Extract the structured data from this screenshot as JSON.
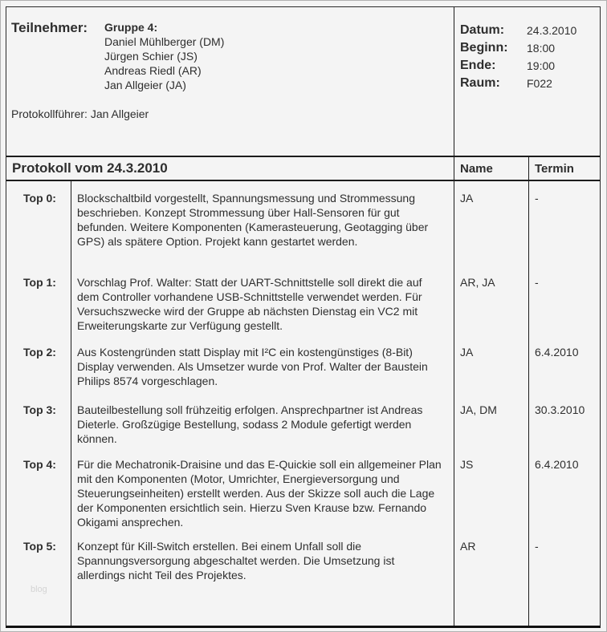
{
  "colors": {
    "background": "#f4f4f4",
    "border": "#1c1c1c",
    "text": "#2e2e2e",
    "watermark": "#d4d4d4"
  },
  "watermark": "blog",
  "header": {
    "participants_label": "Teilnehmer:",
    "group_label": "Gruppe 4:",
    "participants": [
      {
        "name": "Daniel Mühlberger (DM)"
      },
      {
        "name": "Jürgen Schier (JS)"
      },
      {
        "name": "Andreas Riedl (AR)"
      },
      {
        "name": "Jan Allgeier (JA)"
      }
    ],
    "secretary_line": "Protokollführer: Jan Allgeier",
    "meta": [
      {
        "label": "Datum:",
        "value": "24.3.2010"
      },
      {
        "label": "Beginn:",
        "value": "18:00"
      },
      {
        "label": "Ende:",
        "value": "19:00"
      },
      {
        "label": "Raum:",
        "value": "F022"
      }
    ]
  },
  "table": {
    "title": "Protokoll vom 24.3.2010",
    "name_header": "Name",
    "termin_header": "Termin",
    "rows": [
      {
        "top": "Top 0:",
        "text": "Blockschaltbild vorgestellt, Spannungsmessung und Strommessung beschrieben. Konzept Strommessung über Hall-Sensoren für gut befunden. Weitere Komponenten (Kamerasteuerung, Geotagging über GPS) als spätere Option. Projekt kann gestartet werden.",
        "name": "JA",
        "termin": "-"
      },
      {
        "top": "Top 1:",
        "text": "Vorschlag Prof. Walter: Statt der UART-Schnittstelle soll direkt die auf dem Controller vorhandene USB-Schnittstelle verwendet werden. Für Versuchszwecke wird der Gruppe ab nächsten Dienstag ein VC2 mit Erweiterungskarte zur Verfügung gestellt.",
        "name": "AR, JA",
        "termin": "-"
      },
      {
        "top": "Top 2:",
        "text": "Aus Kostengründen statt Display mit I²C ein kostengünstiges (8-Bit) Display verwenden. Als Umsetzer wurde von Prof. Walter der Baustein Philips 8574 vorgeschlagen.",
        "name": "JA",
        "termin": "6.4.2010"
      },
      {
        "top": "Top 3:",
        "text": "Bauteilbestellung soll frühzeitig erfolgen. Ansprechpartner ist Andreas Dieterle. Großzügige Bestellung, sodass 2 Module gefertigt werden können.",
        "name": "JA, DM",
        "termin": "30.3.2010"
      },
      {
        "top": "Top 4:",
        "text": "Für die Mechatronik-Draisine und das E-Quickie soll ein allgemeiner Plan mit den Komponenten (Motor, Umrichter, Energieversorgung und Steuerungseinheiten) erstellt werden. Aus der Skizze soll auch die Lage der Komponenten ersichtlich sein. Hierzu Sven Krause bzw. Fernando Okigami ansprechen.",
        "name": "JS",
        "termin": "6.4.2010"
      },
      {
        "top": "Top 5:",
        "text": "Konzept für Kill-Switch erstellen. Bei einem Unfall soll die Spannungsversorgung abgeschaltet werden. Die Umsetzung ist allerdings nicht Teil des Projektes.",
        "name": "AR",
        "termin": "-"
      }
    ]
  }
}
